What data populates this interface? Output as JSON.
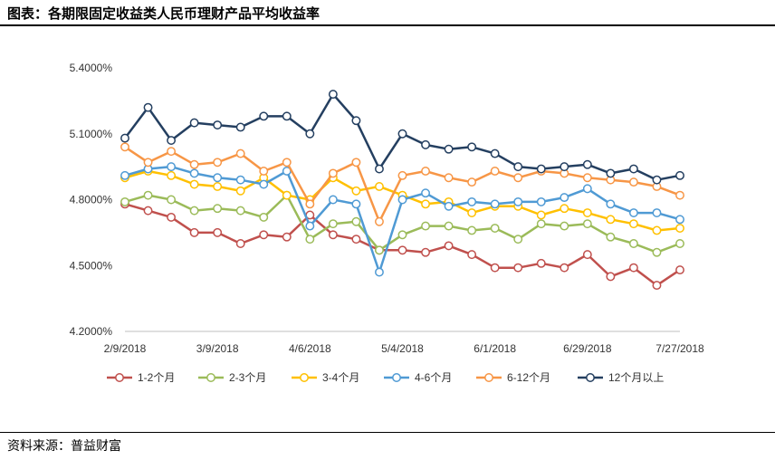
{
  "title": "图表：各期限固定收益类人民币理财产品平均收益率",
  "source": "资料来源：普益财富",
  "chart_data": {
    "type": "line",
    "x": [
      "2/9/2018",
      "2/16/2018",
      "2/23/2018",
      "3/2/2018",
      "3/9/2018",
      "3/16/2018",
      "3/23/2018",
      "3/30/2018",
      "4/6/2018",
      "4/13/2018",
      "4/20/2018",
      "4/27/2018",
      "5/4/2018",
      "5/11/2018",
      "5/18/2018",
      "5/25/2018",
      "6/1/2018",
      "6/8/2018",
      "6/15/2018",
      "6/22/2018",
      "6/29/2018",
      "7/6/2018",
      "7/13/2018",
      "7/20/2018",
      "7/27/2018"
    ],
    "x_tick_labels": [
      "2/9/2018",
      "3/9/2018",
      "4/6/2018",
      "5/4/2018",
      "6/1/2018",
      "6/29/2018",
      "7/27/2018"
    ],
    "y_tick_labels": [
      "5.4000%",
      "5.1000%",
      "4.8000%",
      "4.5000%",
      "4.2000%"
    ],
    "ylim": [
      4.2,
      5.4
    ],
    "y_ticks": [
      4.2,
      4.5,
      4.8,
      5.1,
      5.4
    ],
    "grid": false,
    "legend_position": "bottom",
    "series": [
      {
        "name": "1-2个月",
        "color": "#c0504d",
        "values": [
          4.78,
          4.75,
          4.72,
          4.65,
          4.65,
          4.6,
          4.64,
          4.63,
          4.73,
          4.64,
          4.62,
          4.57,
          4.57,
          4.56,
          4.59,
          4.55,
          4.49,
          4.49,
          4.51,
          4.49,
          4.55,
          4.45,
          4.49,
          4.41,
          4.48
        ]
      },
      {
        "name": "2-3个月",
        "color": "#9bbb59",
        "values": [
          4.79,
          4.82,
          4.8,
          4.75,
          4.76,
          4.75,
          4.72,
          4.82,
          4.62,
          4.69,
          4.7,
          4.57,
          4.64,
          4.68,
          4.68,
          4.66,
          4.67,
          4.62,
          4.69,
          4.68,
          4.69,
          4.63,
          4.6,
          4.56,
          4.6
        ]
      },
      {
        "name": "3-4个月",
        "color": "#ffc000",
        "values": [
          4.9,
          4.93,
          4.91,
          4.87,
          4.86,
          4.84,
          4.9,
          4.82,
          4.8,
          4.9,
          4.84,
          4.86,
          4.82,
          4.78,
          4.79,
          4.74,
          4.77,
          4.77,
          4.73,
          4.76,
          4.74,
          4.71,
          4.69,
          4.66,
          4.67
        ]
      },
      {
        "name": "4-6个月",
        "color": "#4f9ad4",
        "values": [
          4.91,
          4.94,
          4.95,
          4.92,
          4.9,
          4.89,
          4.87,
          4.93,
          4.68,
          4.8,
          4.78,
          4.47,
          4.8,
          4.83,
          4.77,
          4.79,
          4.78,
          4.79,
          4.79,
          4.81,
          4.85,
          4.78,
          4.74,
          4.74,
          4.71
        ]
      },
      {
        "name": "6-12个月",
        "color": "#f79646",
        "values": [
          5.04,
          4.97,
          5.02,
          4.96,
          4.97,
          5.01,
          4.93,
          4.97,
          4.78,
          4.92,
          4.97,
          4.7,
          4.91,
          4.93,
          4.9,
          4.88,
          4.93,
          4.9,
          4.93,
          4.92,
          4.9,
          4.89,
          4.88,
          4.86,
          4.82
        ]
      },
      {
        "name": "12个月以上",
        "color": "#243f60",
        "values": [
          5.08,
          5.22,
          5.07,
          5.15,
          5.14,
          5.13,
          5.18,
          5.18,
          5.1,
          5.28,
          5.16,
          4.94,
          5.1,
          5.05,
          5.03,
          5.04,
          5.01,
          4.95,
          4.94,
          4.95,
          4.96,
          4.92,
          4.94,
          4.89,
          4.91
        ]
      }
    ]
  }
}
